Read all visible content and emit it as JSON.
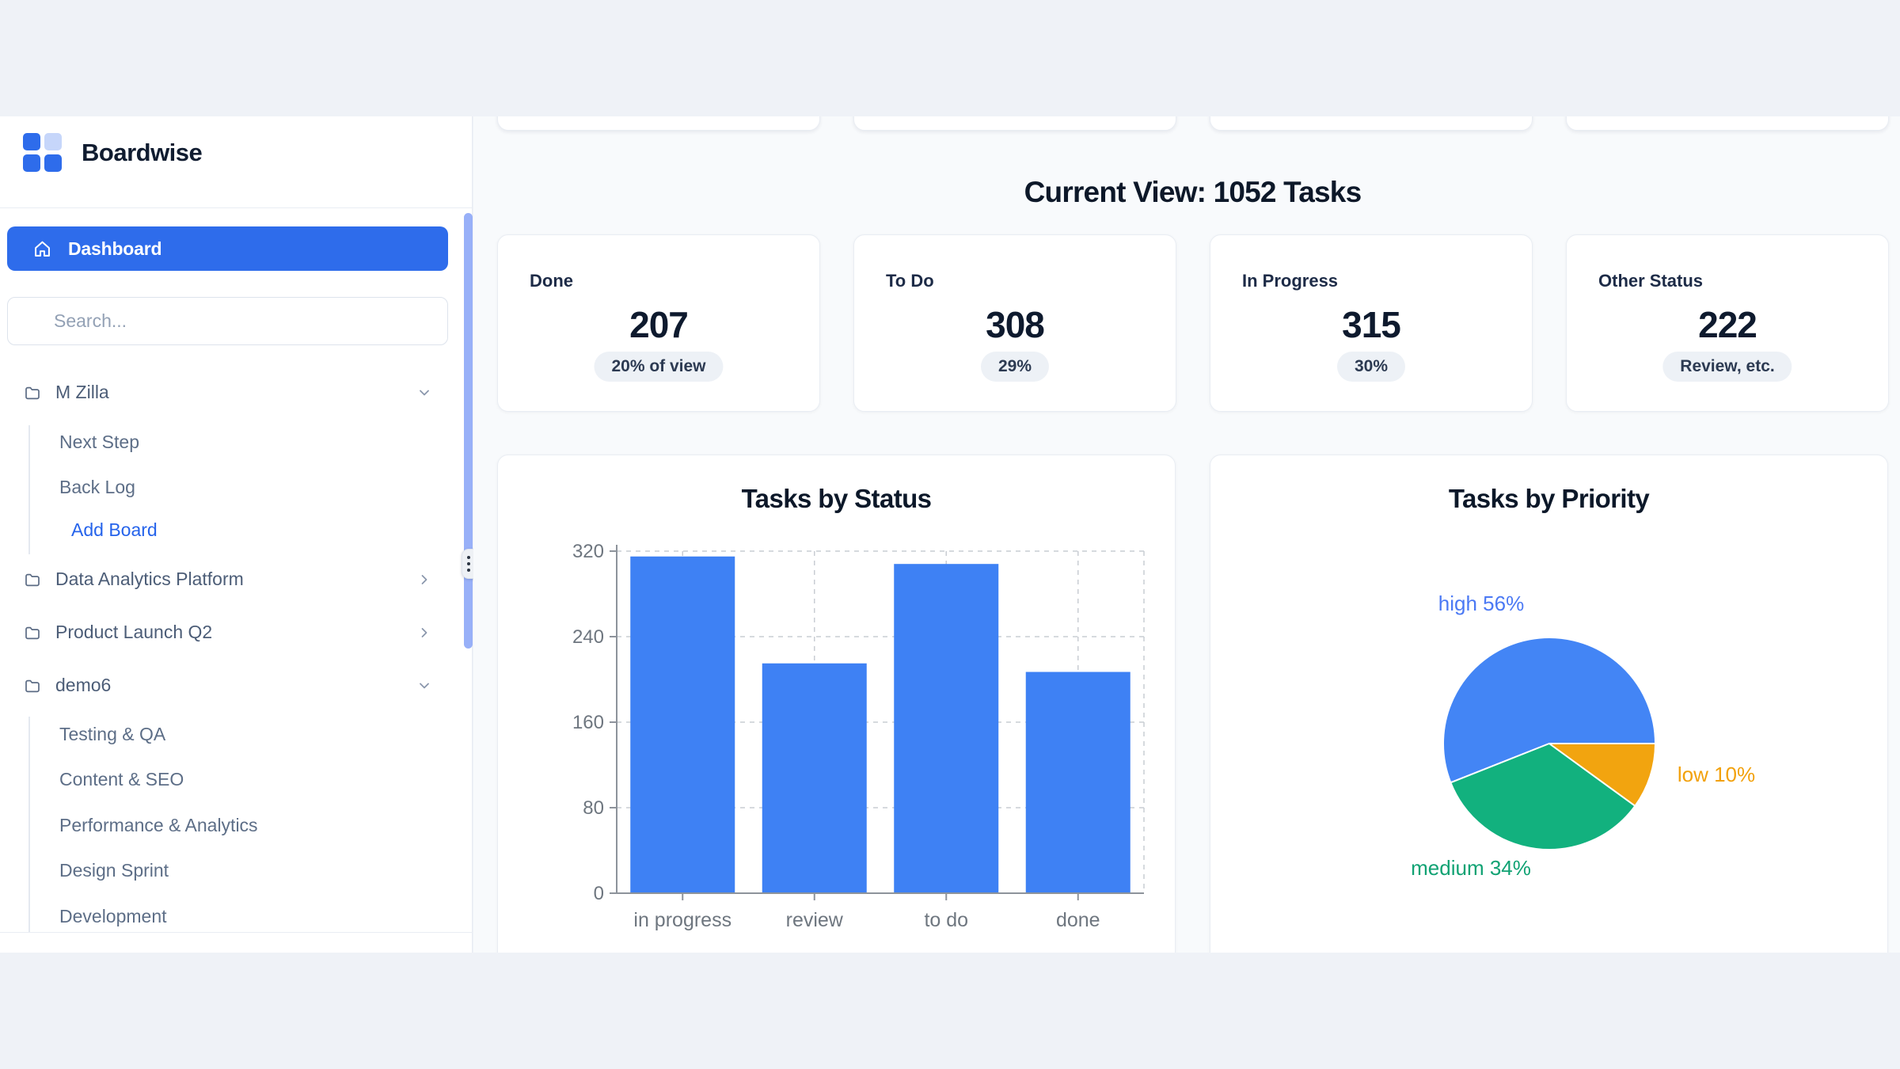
{
  "brand": {
    "name": "Boardwise"
  },
  "sidebar": {
    "dashboard_label": "Dashboard",
    "search_placeholder": "Search...",
    "groups": [
      {
        "label": "M Zilla",
        "state": "expanded",
        "children": [
          "Next Step",
          "Back Log"
        ],
        "action": "Add Board"
      },
      {
        "label": "Data Analytics Platform",
        "state": "collapsed",
        "children": []
      },
      {
        "label": "Product Launch Q2",
        "state": "collapsed",
        "children": []
      },
      {
        "label": "demo6",
        "state": "expanded",
        "children": [
          "Testing & QA",
          "Content & SEO",
          "Performance & Analytics",
          "Design Sprint",
          "Development"
        ]
      }
    ]
  },
  "main": {
    "heading": "Current View: 1052 Tasks",
    "stats": [
      {
        "label": "Done",
        "value": "207",
        "badge": "20% of view"
      },
      {
        "label": "To Do",
        "value": "308",
        "badge": "29%"
      },
      {
        "label": "In Progress",
        "value": "315",
        "badge": "30%"
      },
      {
        "label": "Other Status",
        "value": "222",
        "badge": "Review, etc."
      }
    ]
  },
  "chart_data": [
    {
      "type": "bar",
      "title": "Tasks by Status",
      "categories": [
        "in progress",
        "review",
        "to do",
        "done"
      ],
      "values": [
        315,
        215,
        308,
        207
      ],
      "xlabel": "",
      "ylabel": "",
      "ylim": [
        0,
        320
      ],
      "yticks": [
        320,
        240,
        160,
        80,
        0
      ],
      "grid": "dashed",
      "legend": "none",
      "bar_color": "#3e81f4",
      "axis_color": "#8d939b",
      "tick_label_color": "#6e767f",
      "grid_color": "#c9cdd3"
    },
    {
      "type": "pie",
      "title": "Tasks by Priority",
      "legend": "labels-outside",
      "slices": [
        {
          "label": "high",
          "pct": 56,
          "color": "#4385f5",
          "label_color": "#4b79f4"
        },
        {
          "label": "medium",
          "pct": 34,
          "color": "#12b17e",
          "label_color": "#10a273"
        },
        {
          "label": "low",
          "pct": 10,
          "color": "#f2a40f",
          "label_color": "#f2a10c"
        }
      ]
    }
  ]
}
